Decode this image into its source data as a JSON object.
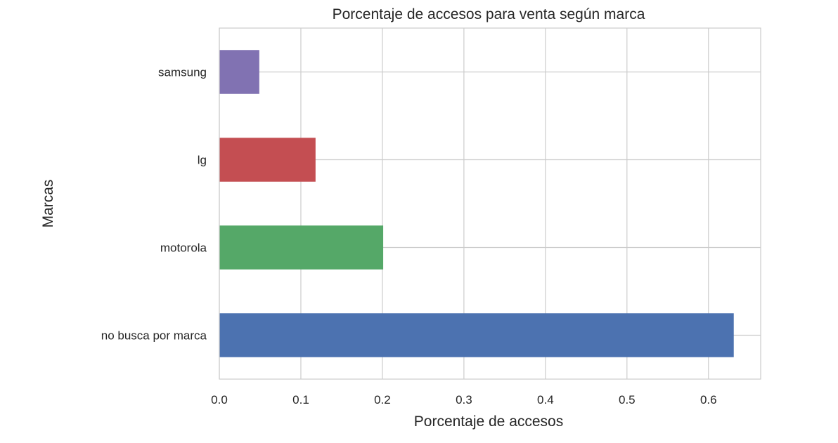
{
  "chart_data": {
    "type": "bar",
    "orientation": "horizontal",
    "title": "Porcentaje de accesos para venta según marca",
    "xlabel": "Porcentaje de accesos",
    "ylabel": "Marcas",
    "categories": [
      "no busca por marca",
      "motorola",
      "lg",
      "samsung"
    ],
    "values": [
      0.631,
      0.201,
      0.118,
      0.049
    ],
    "colors": [
      "#4c72b0",
      "#55a868",
      "#c44e52",
      "#8172b2"
    ],
    "xlim": [
      0,
      0.664
    ],
    "xticks": [
      0.0,
      0.1,
      0.2,
      0.3,
      0.4,
      0.5,
      0.6
    ],
    "xtick_labels": [
      "0.0",
      "0.1",
      "0.2",
      "0.3",
      "0.4",
      "0.5",
      "0.6"
    ],
    "grid": true,
    "legend": "none"
  },
  "style": {
    "grid_color": "#cccccc",
    "text_color": "#262626",
    "background": "#ffffff"
  }
}
